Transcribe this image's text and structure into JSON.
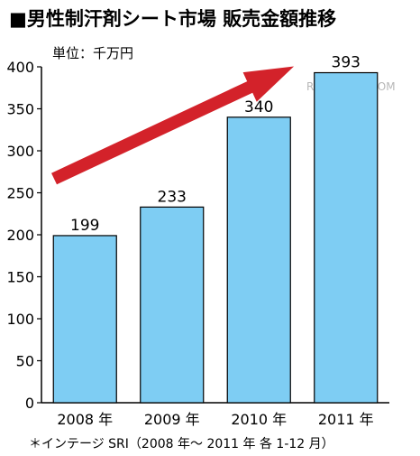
{
  "title": "■男性制汗剤シート市場 販売金額推移",
  "unit_label": "単位：千万円",
  "footnote": "＊インテージ SRI（2008 年～ 2011 年 各 1-12 月）",
  "watermark": "RBB TODAY.COM",
  "colors": {
    "bar_fill": "#7ecdf3",
    "bar_stroke": "#000000",
    "arrow": "#d3222a",
    "axis": "#000000"
  },
  "chart_data": {
    "type": "bar",
    "title": "■男性制汗剤シート市場 販売金額推移",
    "xlabel": "",
    "ylabel": "単位：千万円",
    "categories": [
      "2008 年",
      "2009 年",
      "2010 年",
      "2011 年"
    ],
    "values": [
      199,
      233,
      340,
      393
    ],
    "ylim": [
      0,
      400
    ],
    "yticks": [
      0,
      50,
      100,
      150,
      200,
      250,
      300,
      350,
      400
    ],
    "grid": false,
    "legend": "none",
    "data_labels": [
      "199",
      "233",
      "340",
      "393"
    ],
    "annotation": "red upward trend arrow"
  }
}
